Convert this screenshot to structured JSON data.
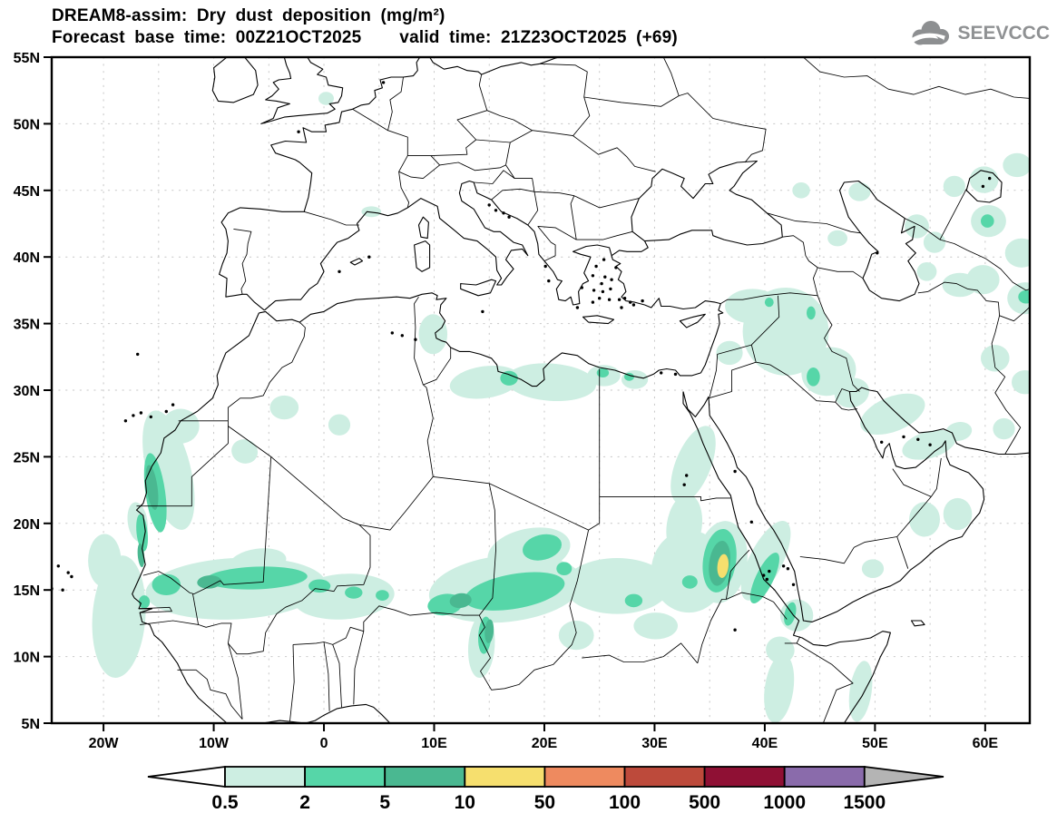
{
  "header": {
    "title_line1": "DREAM8-assim: Dry dust deposition (mg/m²)",
    "title_line2": "Forecast base time: 00Z21OCT2025    valid time: 21Z23OCT2025 (+69)"
  },
  "logo": {
    "text": "SEEVCCC"
  },
  "axes": {
    "x_ticks": [
      {
        "label": "20W",
        "lon": -20
      },
      {
        "label": "10W",
        "lon": -10
      },
      {
        "label": "0",
        "lon": 0
      },
      {
        "label": "10E",
        "lon": 10
      },
      {
        "label": "20E",
        "lon": 20
      },
      {
        "label": "30E",
        "lon": 30
      },
      {
        "label": "40E",
        "lon": 40
      },
      {
        "label": "50E",
        "lon": 50
      },
      {
        "label": "60E",
        "lon": 60
      }
    ],
    "y_ticks": [
      {
        "label": "55N",
        "lat": 55
      },
      {
        "label": "50N",
        "lat": 50
      },
      {
        "label": "45N",
        "lat": 45
      },
      {
        "label": "40N",
        "lat": 40
      },
      {
        "label": "35N",
        "lat": 35
      },
      {
        "label": "30N",
        "lat": 30
      },
      {
        "label": "25N",
        "lat": 25
      },
      {
        "label": "20N",
        "lat": 20
      },
      {
        "label": "15N",
        "lat": 15
      },
      {
        "label": "10N",
        "lat": 10
      },
      {
        "label": "5N",
        "lat": 5
      }
    ]
  },
  "colorbar": {
    "labels": [
      "0.5",
      "2",
      "5",
      "10",
      "50",
      "100",
      "500",
      "1000",
      "1500"
    ],
    "segment_colors": [
      "#cdeee2",
      "#56d6a8",
      "#4ab891",
      "#f6df6e",
      "#ee8a5f",
      "#bd4a3b",
      "#8f1034",
      "#8a6bab"
    ],
    "underflow_color": "#ffffff",
    "overflow_color": "#b4b4b4"
  },
  "chart_data": {
    "type": "filled-contour-map",
    "title": "DREAM8-assim: Dry dust deposition (mg/m²)",
    "variable": "Dry dust deposition",
    "units": "mg/m²",
    "model": "DREAM8-assim",
    "base_time": "00Z21OCT2025",
    "valid_time": "21Z23OCT2025",
    "forecast_hour": "+69",
    "lon_range": [
      -24.7,
      64.0
    ],
    "lat_range": [
      5,
      55
    ],
    "graticule_step_deg": 5,
    "contour_levels": [
      0.5,
      2,
      5,
      10,
      50,
      100,
      500,
      1000,
      1500
    ],
    "level_band_labels": [
      "0.5-2",
      "2-5",
      "5-10",
      "10-50",
      "50-100",
      "100-500",
      "500-1000",
      "1000-1500",
      ">1500"
    ],
    "dust_regions": [
      {
        "level": 1,
        "region": "W Sahara coastal band",
        "lon": -14.1,
        "lat": 24.0,
        "rx": 2.0,
        "ry": 4.6,
        "rot": -14
      },
      {
        "level": 1,
        "region": "S Morocco",
        "lon": -13.0,
        "lat": 27.3,
        "rx": 1.7,
        "ry": 1.3,
        "rot": 0
      },
      {
        "level": 1,
        "region": "Atlantic off Senegal",
        "lon": -18.6,
        "lat": 13.0,
        "rx": 2.4,
        "ry": 4.6,
        "rot": 4
      },
      {
        "level": 1,
        "region": "Atlantic off Mauritania",
        "lon": -19.9,
        "lat": 17.2,
        "rx": 1.5,
        "ry": 2.0,
        "rot": 0
      },
      {
        "level": 1,
        "region": "Sahel west band",
        "lon": -8.0,
        "lat": 15.1,
        "rx": 8.2,
        "ry": 2.3,
        "rot": -3
      },
      {
        "level": 1,
        "region": "Sahel Niger band",
        "lon": 1.8,
        "lat": 14.5,
        "rx": 4.6,
        "ry": 1.7,
        "rot": -4
      },
      {
        "level": 1,
        "region": "N Mali bump",
        "lon": -6.0,
        "lat": 17.1,
        "rx": 2.6,
        "ry": 1.0,
        "rot": -8
      },
      {
        "level": 1,
        "region": "NE Mauritania",
        "lon": -7.2,
        "lat": 25.4,
        "rx": 1.2,
        "ry": 0.9,
        "rot": 20
      },
      {
        "level": 1,
        "region": "Algeria spot",
        "lon": -3.6,
        "lat": 28.7,
        "rx": 1.3,
        "ry": 0.9,
        "rot": 0
      },
      {
        "level": 1,
        "region": "Algeria spot 2",
        "lon": 1.4,
        "lat": 27.4,
        "rx": 1.0,
        "ry": 0.8,
        "rot": 0
      },
      {
        "level": 1,
        "region": "Chad band",
        "lon": 16.5,
        "lat": 15.1,
        "rx": 7.0,
        "ry": 2.5,
        "rot": -6
      },
      {
        "level": 1,
        "region": "N Chad lobe",
        "lon": 18.6,
        "lat": 17.9,
        "rx": 3.8,
        "ry": 1.7,
        "rot": -12
      },
      {
        "level": 1,
        "region": "W Sudan band",
        "lon": 26.6,
        "lat": 15.3,
        "rx": 4.8,
        "ry": 2.1,
        "rot": 0
      },
      {
        "level": 1,
        "region": "E Sudan blob",
        "lon": 33.1,
        "lat": 16.4,
        "rx": 3.4,
        "ry": 3.1,
        "rot": 0
      },
      {
        "level": 1,
        "region": "Nile lobe",
        "lon": 32.7,
        "lat": 19.8,
        "rx": 1.6,
        "ry": 2.4,
        "rot": 8
      },
      {
        "level": 1,
        "region": "Eritrea blob",
        "lon": 36.1,
        "lat": 17.1,
        "rx": 2.3,
        "ry": 3.1,
        "rot": 8
      },
      {
        "level": 1,
        "region": "Red Sea coast band",
        "lon": 40.1,
        "lat": 17.2,
        "rx": 1.5,
        "ry": 3.3,
        "rot": 27
      },
      {
        "level": 1,
        "region": "Bab el Mandeb",
        "lon": 42.9,
        "lat": 13.1,
        "rx": 1.5,
        "ry": 1.2,
        "rot": 0
      },
      {
        "level": 1,
        "region": "Djibouti",
        "lon": 41.4,
        "lat": 10.5,
        "rx": 1.3,
        "ry": 1.0,
        "rot": 12
      },
      {
        "level": 1,
        "region": "Ethiopia band",
        "lon": 41.3,
        "lat": 7.6,
        "rx": 1.3,
        "ry": 2.6,
        "rot": 8
      },
      {
        "level": 1,
        "region": "Somalia band",
        "lon": 48.7,
        "lat": 7.4,
        "rx": 1.0,
        "ry": 2.3,
        "rot": 8
      },
      {
        "level": 1,
        "region": "N Red Sea band",
        "lon": 33.5,
        "lat": 24.4,
        "rx": 1.6,
        "ry": 3.1,
        "rot": 22
      },
      {
        "level": 1,
        "region": "Tunisia",
        "lon": 9.9,
        "lat": 34.2,
        "rx": 1.3,
        "ry": 1.5,
        "rot": 0
      },
      {
        "level": 1,
        "region": "Libya Sirte coast",
        "lon": 14.6,
        "lat": 30.6,
        "rx": 3.2,
        "ry": 1.2,
        "rot": -8
      },
      {
        "level": 1,
        "region": "Cyrenaica coast",
        "lon": 20.6,
        "lat": 30.6,
        "rx": 4.1,
        "ry": 1.4,
        "rot": 4
      },
      {
        "level": 1,
        "region": "Egypt coast W",
        "lon": 25.4,
        "lat": 31.1,
        "rx": 1.5,
        "ry": 0.8,
        "rot": 0
      },
      {
        "level": 1,
        "region": "Egypt coast E",
        "lon": 28.2,
        "lat": 30.8,
        "rx": 1.2,
        "ry": 0.7,
        "rot": 0
      },
      {
        "level": 1,
        "region": "SE England",
        "lon": 0.2,
        "lat": 51.9,
        "rx": 0.7,
        "ry": 0.5,
        "rot": 0
      },
      {
        "level": 1,
        "region": "S France coast",
        "lon": 4.3,
        "lat": 43.4,
        "rx": 0.9,
        "ry": 0.4,
        "rot": 0
      },
      {
        "level": 1,
        "region": "Syria-Iraq",
        "lon": 41.9,
        "lat": 34.4,
        "rx": 3.9,
        "ry": 3.3,
        "rot": 0
      },
      {
        "level": 1,
        "region": "SE Turkey",
        "lon": 38.9,
        "lat": 36.3,
        "rx": 2.5,
        "ry": 1.3,
        "rot": 0
      },
      {
        "level": 1,
        "region": "NE Jordan",
        "lon": 36.8,
        "lat": 32.8,
        "rx": 1.2,
        "ry": 0.9,
        "rot": 0
      },
      {
        "level": 1,
        "region": "Lower Iraq",
        "lon": 45.8,
        "lat": 31.4,
        "rx": 2.5,
        "ry": 1.8,
        "rot": -18
      },
      {
        "level": 1,
        "region": "Kuwait",
        "lon": 47.9,
        "lat": 29.8,
        "rx": 1.6,
        "ry": 1.1,
        "rot": -18
      },
      {
        "level": 1,
        "region": "N Persian Gulf",
        "lon": 51.6,
        "lat": 28.2,
        "rx": 3.1,
        "ry": 1.3,
        "rot": -22
      },
      {
        "level": 1,
        "region": "S Persian Gulf",
        "lon": 54.9,
        "lat": 25.9,
        "rx": 2.5,
        "ry": 1.0,
        "rot": -16
      },
      {
        "level": 1,
        "region": "Hormuz",
        "lon": 57.6,
        "lat": 26.9,
        "rx": 1.2,
        "ry": 0.7,
        "rot": -10
      },
      {
        "level": 1,
        "region": "Oman interior 1",
        "lon": 54.5,
        "lat": 20.3,
        "rx": 1.4,
        "ry": 1.3,
        "rot": 0
      },
      {
        "level": 1,
        "region": "Oman interior 2",
        "lon": 57.5,
        "lat": 20.7,
        "rx": 1.3,
        "ry": 1.2,
        "rot": 0
      },
      {
        "level": 1,
        "region": "E Yemen",
        "lon": 49.8,
        "lat": 16.6,
        "rx": 1.0,
        "ry": 0.7,
        "rot": 0
      },
      {
        "level": 1,
        "region": "N Caucasus",
        "lon": 43.3,
        "lat": 45.0,
        "rx": 0.8,
        "ry": 0.6,
        "rot": 0
      },
      {
        "level": 1,
        "region": "NW Caspian",
        "lon": 48.6,
        "lat": 44.9,
        "rx": 1.0,
        "ry": 0.7,
        "rot": 0
      },
      {
        "level": 1,
        "region": "Azerbaijan",
        "lon": 46.6,
        "lat": 41.4,
        "rx": 0.9,
        "ry": 0.6,
        "rot": 0
      },
      {
        "level": 1,
        "region": "E Caspian shore",
        "lon": 53.8,
        "lat": 42.3,
        "rx": 1.1,
        "ry": 0.9,
        "rot": 0
      },
      {
        "level": 1,
        "region": "NW Turkmenistan",
        "lon": 55.4,
        "lat": 41.1,
        "rx": 1.0,
        "ry": 0.8,
        "rot": 0
      },
      {
        "level": 1,
        "region": "W of Aral",
        "lon": 57.2,
        "lat": 45.3,
        "rx": 1.0,
        "ry": 0.8,
        "rot": 0
      },
      {
        "level": 1,
        "region": "E of Aral",
        "lon": 59.9,
        "lat": 45.8,
        "rx": 1.3,
        "ry": 1.0,
        "rot": 0
      },
      {
        "level": 1,
        "region": "NE corner",
        "lon": 62.9,
        "lat": 46.9,
        "rx": 1.3,
        "ry": 0.9,
        "rot": 0
      },
      {
        "level": 1,
        "region": "Uzbekistan blob",
        "lon": 60.3,
        "lat": 42.7,
        "rx": 1.6,
        "ry": 1.2,
        "rot": 0
      },
      {
        "level": 1,
        "region": "E Uzbekistan",
        "lon": 63.3,
        "lat": 40.3,
        "rx": 1.5,
        "ry": 1.1,
        "rot": 0
      },
      {
        "level": 1,
        "region": "Turkmenistan mid",
        "lon": 59.8,
        "lat": 38.3,
        "rx": 1.5,
        "ry": 1.1,
        "rot": 0
      },
      {
        "level": 1,
        "region": "Turkmen-Afghan",
        "lon": 63.6,
        "lat": 36.9,
        "rx": 1.6,
        "ry": 1.2,
        "rot": 0
      },
      {
        "level": 1,
        "region": "Iran-Turkmen border",
        "lon": 57.7,
        "lat": 37.9,
        "rx": 1.6,
        "ry": 0.9,
        "rot": 0
      },
      {
        "level": 1,
        "region": "SE Caspian",
        "lon": 54.7,
        "lat": 38.9,
        "rx": 0.9,
        "ry": 0.7,
        "rot": 0
      },
      {
        "level": 1,
        "region": "E Iran",
        "lon": 60.9,
        "lat": 32.4,
        "rx": 1.3,
        "ry": 1.0,
        "rot": 0
      },
      {
        "level": 1,
        "region": "Afghanistan",
        "lon": 63.6,
        "lat": 30.6,
        "rx": 1.2,
        "ry": 0.9,
        "rot": 0
      },
      {
        "level": 1,
        "region": "Baluchistan",
        "lon": 61.7,
        "lat": 27.1,
        "rx": 1.0,
        "ry": 0.8,
        "rot": 0
      },
      {
        "level": 1,
        "region": "SE Chad",
        "lon": 22.9,
        "lat": 11.6,
        "rx": 1.6,
        "ry": 1.1,
        "rot": 0
      },
      {
        "level": 1,
        "region": "S Sudan",
        "lon": 30.1,
        "lat": 12.3,
        "rx": 2.0,
        "ry": 1.0,
        "rot": 0
      },
      {
        "level": 1,
        "region": "Cameroon strip",
        "lon": 14.3,
        "lat": 10.8,
        "rx": 1.2,
        "ry": 2.4,
        "rot": 4
      },
      {
        "level": 1,
        "region": "Mauritania coast S",
        "lon": -16.9,
        "lat": 20.1,
        "rx": 0.9,
        "ry": 1.5,
        "rot": -8
      },
      {
        "level": 2,
        "region": "W Sahara coast core",
        "lon": -15.3,
        "lat": 22.3,
        "rx": 0.9,
        "ry": 3.0,
        "rot": -8
      },
      {
        "level": 2,
        "region": "Mauritania coast sliver",
        "lon": -16.5,
        "lat": 19.3,
        "rx": 0.5,
        "ry": 1.4,
        "rot": -6
      },
      {
        "level": 2,
        "region": "Senegal",
        "lon": -14.3,
        "lat": 15.4,
        "rx": 1.3,
        "ry": 0.8,
        "rot": 0
      },
      {
        "level": 2,
        "region": "Dakar",
        "lon": -16.3,
        "lat": 14.1,
        "rx": 0.5,
        "ry": 0.5,
        "rot": 0
      },
      {
        "level": 2,
        "region": "Sahel green band",
        "lon": -6.1,
        "lat": 15.9,
        "rx": 4.6,
        "ry": 0.85,
        "rot": -2
      },
      {
        "level": 2,
        "region": "Niger 1",
        "lon": -0.4,
        "lat": 15.3,
        "rx": 1.0,
        "ry": 0.5,
        "rot": 0
      },
      {
        "level": 2,
        "region": "Niger 2",
        "lon": 2.7,
        "lat": 14.8,
        "rx": 0.8,
        "ry": 0.45,
        "rot": 0
      },
      {
        "level": 2,
        "region": "Niger 3",
        "lon": 5.3,
        "lat": 14.6,
        "rx": 0.6,
        "ry": 0.4,
        "rot": 0
      },
      {
        "level": 2,
        "region": "Chad diagonal band",
        "lon": 17.3,
        "lat": 14.9,
        "rx": 4.6,
        "ry": 1.3,
        "rot": -10
      },
      {
        "level": 2,
        "region": "N Chad",
        "lon": 19.8,
        "lat": 18.2,
        "rx": 1.8,
        "ry": 0.95,
        "rot": -14
      },
      {
        "level": 2,
        "region": "Chad E spot",
        "lon": 21.8,
        "lat": 16.6,
        "rx": 0.7,
        "ry": 0.5,
        "rot": 0
      },
      {
        "level": 2,
        "region": "Sudan spot",
        "lon": 28.1,
        "lat": 14.2,
        "rx": 0.8,
        "ry": 0.5,
        "rot": 0
      },
      {
        "level": 2,
        "region": "Khartoum area",
        "lon": 33.2,
        "lat": 15.6,
        "rx": 0.7,
        "ry": 0.5,
        "rot": 0
      },
      {
        "level": 2,
        "region": "Eritrea-Sudan green",
        "lon": 35.9,
        "lat": 17.2,
        "rx": 1.5,
        "ry": 2.4,
        "rot": 8
      },
      {
        "level": 2,
        "region": "Eritrea coast band",
        "lon": 40.0,
        "lat": 15.9,
        "rx": 0.8,
        "ry": 2.1,
        "rot": 26
      },
      {
        "level": 2,
        "region": "Bab el Mandeb green",
        "lon": 42.3,
        "lat": 13.2,
        "rx": 0.5,
        "ry": 0.9,
        "rot": 14
      },
      {
        "level": 2,
        "region": "Sirte",
        "lon": 16.8,
        "lat": 30.9,
        "rx": 0.8,
        "ry": 0.55,
        "rot": 0
      },
      {
        "level": 2,
        "region": "Egypt coast green 1",
        "lon": 25.3,
        "lat": 31.3,
        "rx": 0.55,
        "ry": 0.35,
        "rot": 0
      },
      {
        "level": 2,
        "region": "Egypt coast green 2",
        "lon": 27.7,
        "lat": 31.0,
        "rx": 0.45,
        "ry": 0.3,
        "rot": 0
      },
      {
        "level": 2,
        "region": "Iraq green",
        "lon": 44.4,
        "lat": 31.0,
        "rx": 0.6,
        "ry": 0.7,
        "rot": 0
      },
      {
        "level": 2,
        "region": "N Iraq green",
        "lon": 44.2,
        "lat": 35.8,
        "rx": 0.4,
        "ry": 0.5,
        "rot": 0
      },
      {
        "level": 2,
        "region": "Syria green",
        "lon": 40.4,
        "lat": 36.6,
        "rx": 0.4,
        "ry": 0.35,
        "rot": 0
      },
      {
        "level": 2,
        "region": "Uzbek core",
        "lon": 60.2,
        "lat": 42.7,
        "rx": 0.6,
        "ry": 0.5,
        "rot": 0
      },
      {
        "level": 2,
        "region": "Turkmen core",
        "lon": 63.7,
        "lat": 37.0,
        "rx": 0.7,
        "ry": 0.5,
        "rot": 0
      },
      {
        "level": 2,
        "region": "NE Nigeria",
        "lon": 11.0,
        "lat": 13.9,
        "rx": 1.6,
        "ry": 0.8,
        "rot": -8
      },
      {
        "level": 2,
        "region": "Cameroon strip green",
        "lon": 14.6,
        "lat": 11.6,
        "rx": 0.6,
        "ry": 1.4,
        "rot": 4
      },
      {
        "level": 3,
        "region": "W Sahara dark core",
        "lon": -15.6,
        "lat": 22.7,
        "rx": 0.5,
        "ry": 1.7,
        "rot": -8
      },
      {
        "level": 3,
        "region": "Mauritania coast dark",
        "lon": -16.6,
        "lat": 17.6,
        "rx": 0.3,
        "ry": 0.9,
        "rot": -5
      },
      {
        "level": 3,
        "region": "Sahel dark core",
        "lon": -10.4,
        "lat": 15.6,
        "rx": 1.1,
        "ry": 0.5,
        "rot": -4
      },
      {
        "level": 3,
        "region": "Lake Chad dark",
        "lon": 12.4,
        "lat": 14.2,
        "rx": 1.0,
        "ry": 0.55,
        "rot": -8
      },
      {
        "level": 3,
        "region": "Cameroon dark",
        "lon": 15.0,
        "lat": 11.9,
        "rx": 0.4,
        "ry": 0.9,
        "rot": 4
      },
      {
        "level": 3,
        "region": "Eritrea ring",
        "lon": 35.9,
        "lat": 17.0,
        "rx": 0.95,
        "ry": 1.7,
        "rot": 8
      },
      {
        "level": 4,
        "region": "Eritrea-Sudan maximum",
        "lon": 36.2,
        "lat": 16.8,
        "rx": 0.5,
        "ry": 0.9,
        "rot": 6
      }
    ]
  }
}
